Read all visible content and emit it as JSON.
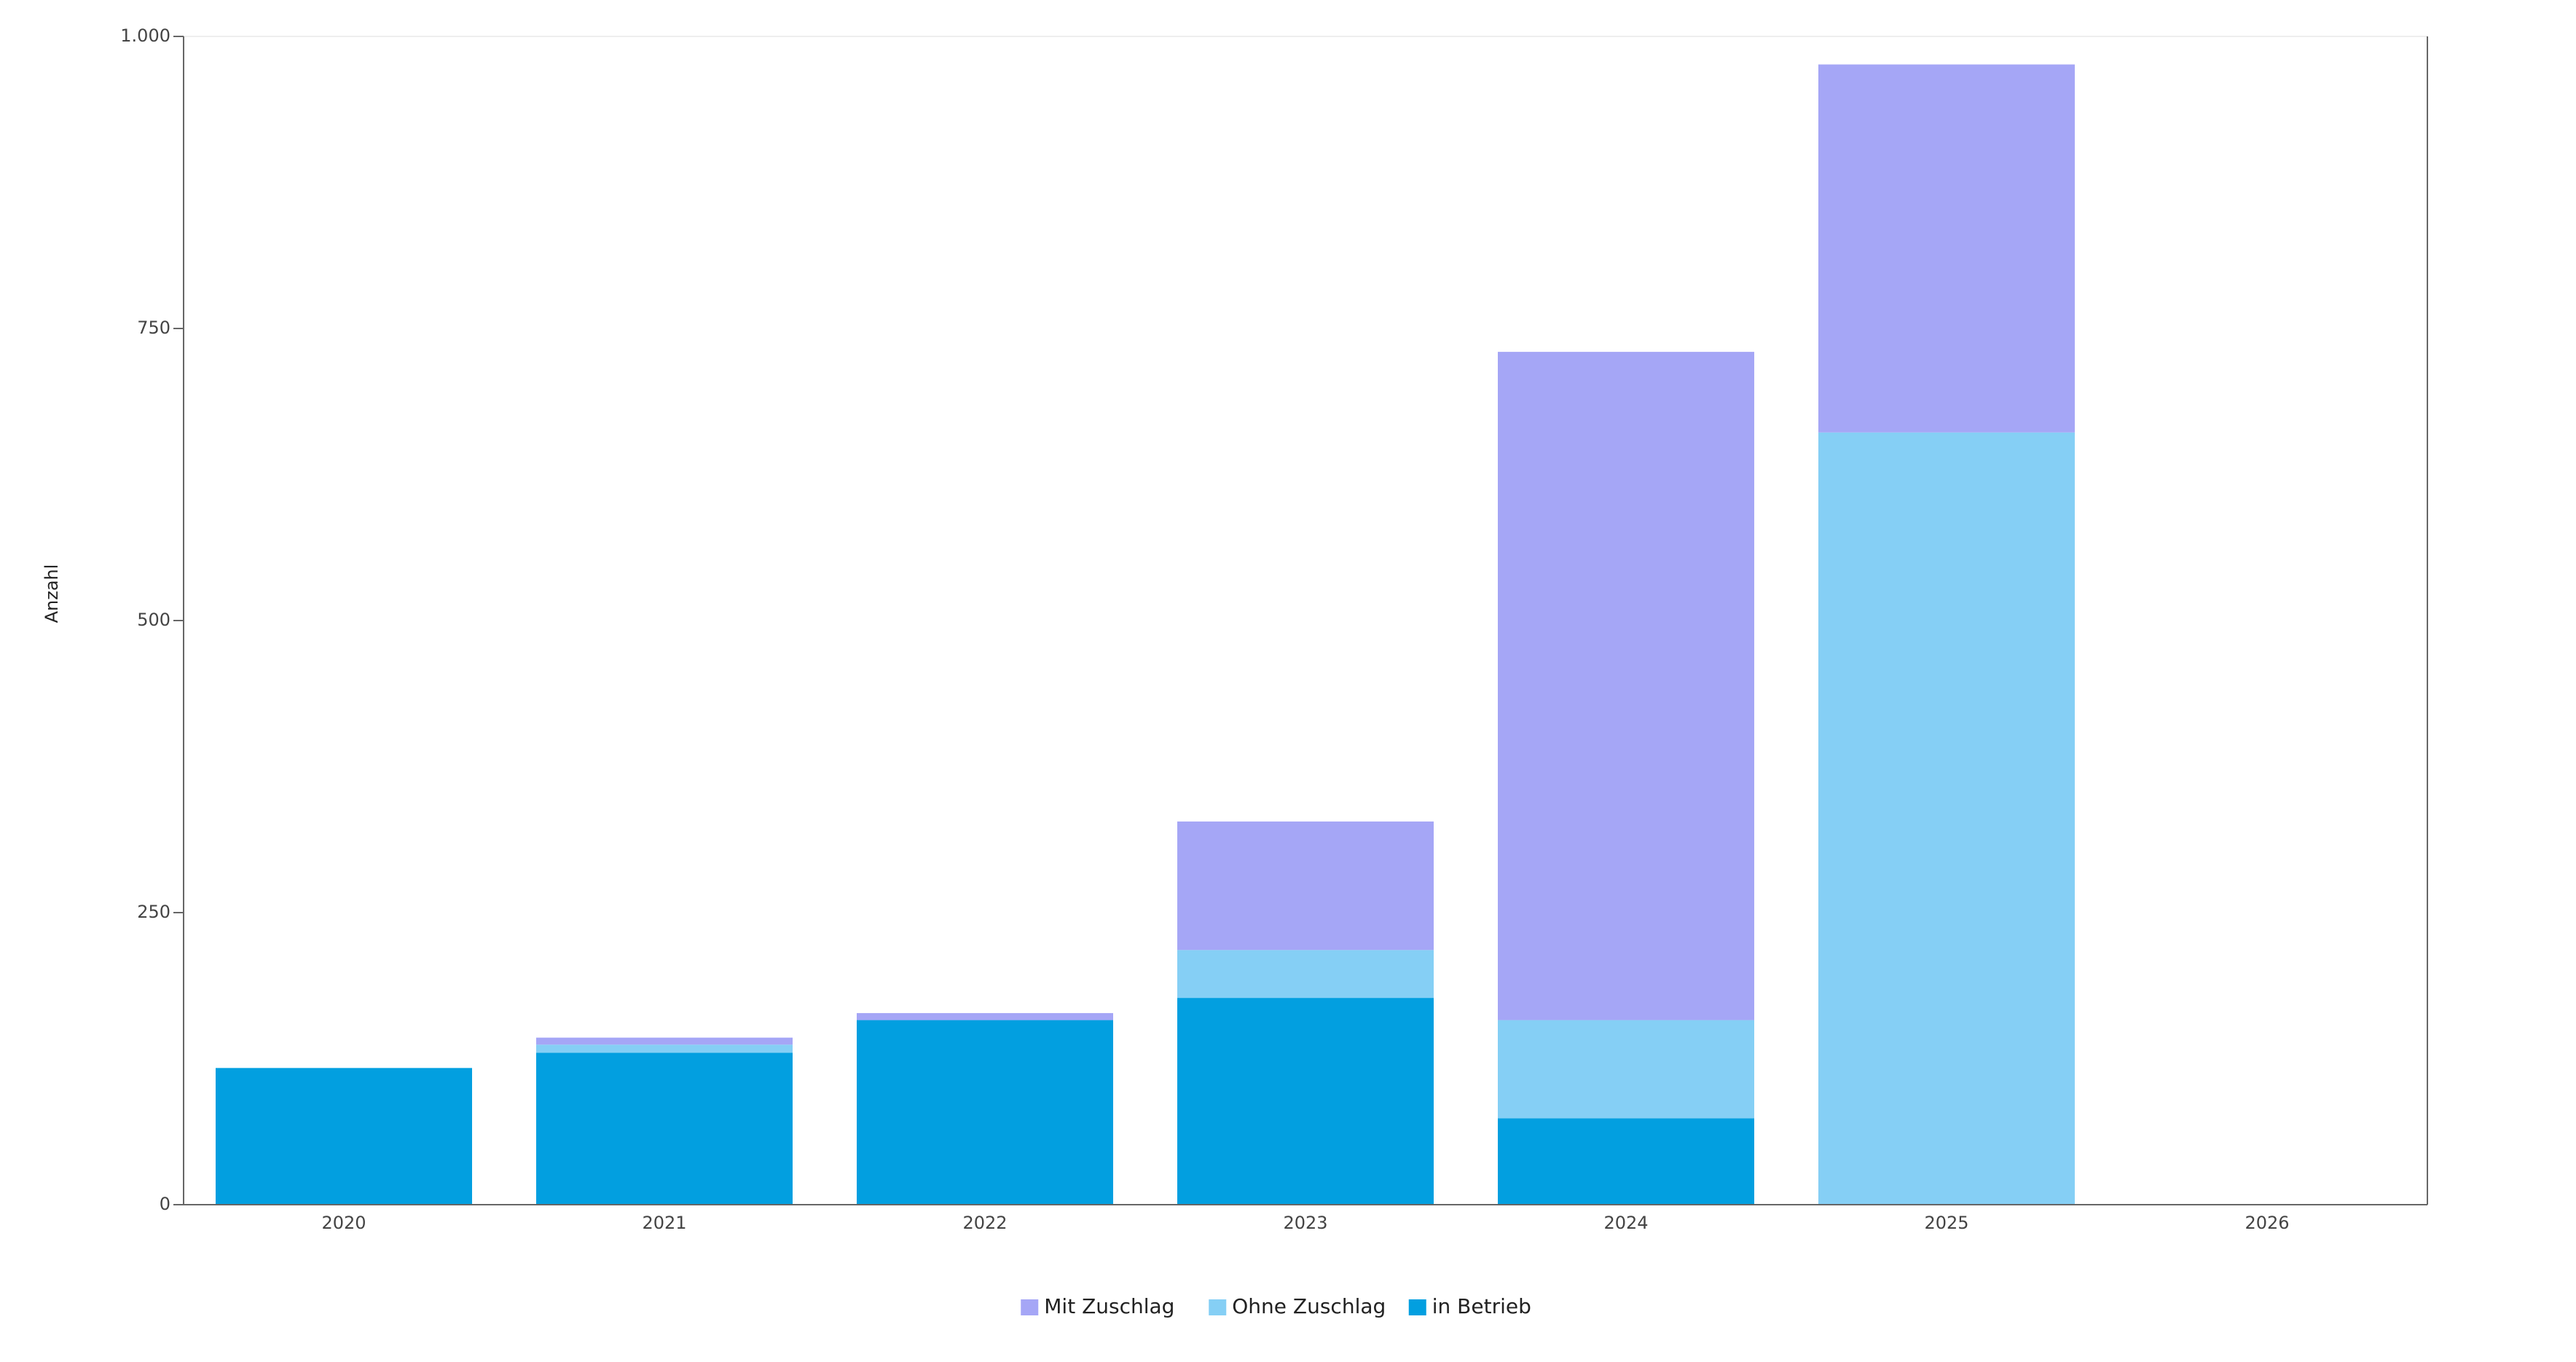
{
  "chart_data": {
    "type": "stacked-bar",
    "y_label": "Anzahl",
    "categories": [
      "2020",
      "2021",
      "2022",
      "2023",
      "2024",
      "2025",
      "2026"
    ],
    "series": [
      {
        "name": "Mit Zuschlag",
        "color": "#a5a6f6",
        "values": [
          0,
          6,
          6,
          110,
          572,
          315,
          0
        ]
      },
      {
        "name": "Ohne Zuschlag",
        "color": "#85cff5",
        "values": [
          0,
          7,
          0,
          41,
          84,
          661,
          0
        ]
      },
      {
        "name": "in Betrieb",
        "color": "#029fe0",
        "values": [
          117,
          130,
          158,
          177,
          74,
          0,
          0
        ]
      }
    ],
    "ylim": [
      0,
      1000
    ],
    "yticks": [
      0,
      250,
      500,
      750,
      {
        "value": 1000,
        "label": "1.000"
      }
    ],
    "legend": "bottom"
  }
}
